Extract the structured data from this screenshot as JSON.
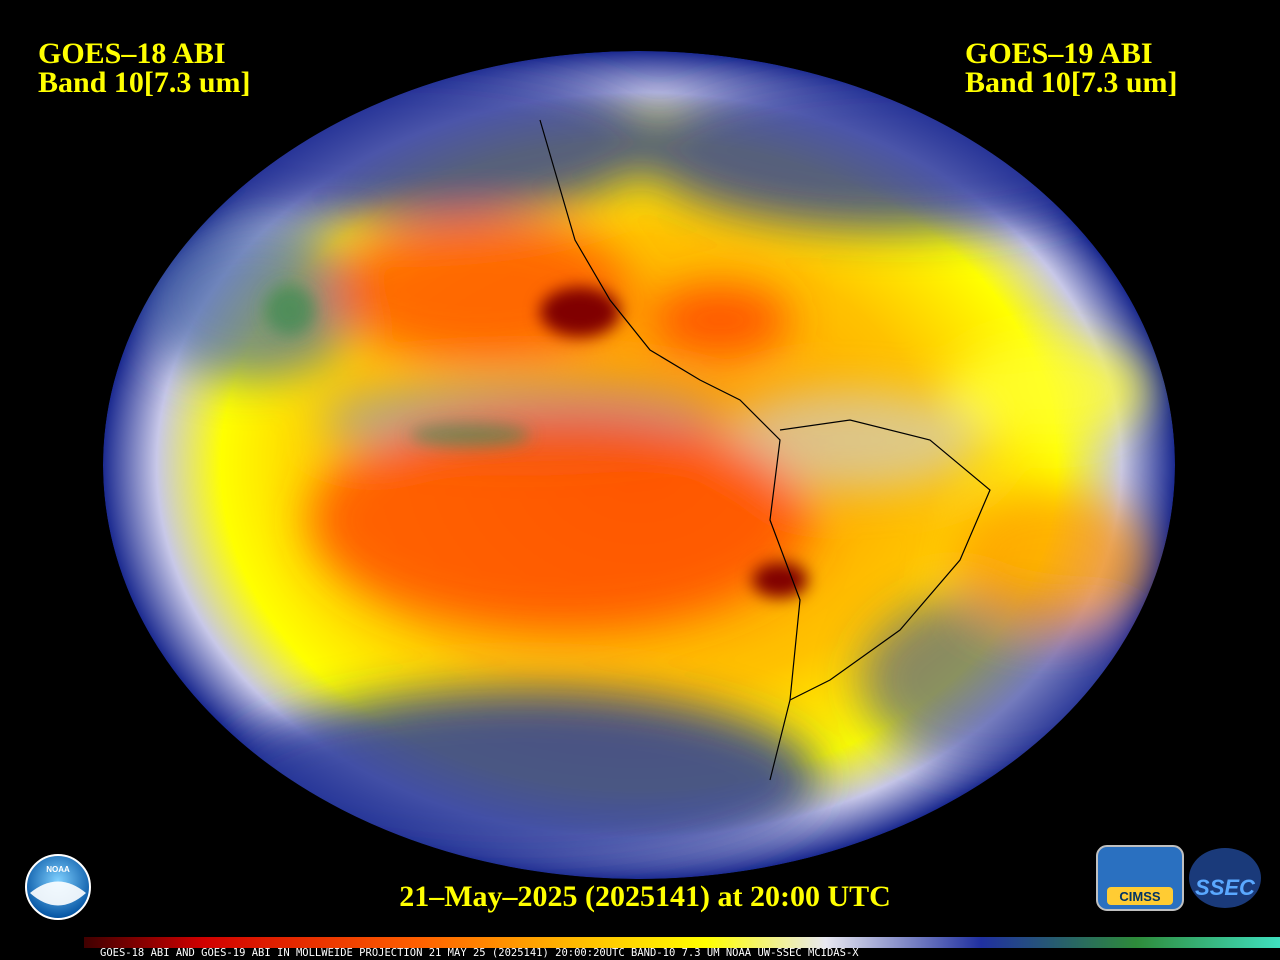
{
  "left_label": {
    "satellite": "GOES–18 ABI",
    "band": "Band 10[7.3 um]"
  },
  "right_label": {
    "satellite": "GOES–19 ABI",
    "band": "Band 10[7.3 um]"
  },
  "timestamp": "21–May–2025 (2025141) at 20:00 UTC",
  "footer": "GOES-18 ABI AND GOES-19 ABI IN MOLLWEIDE PROJECTION 21 MAY 25 (2025141) 20:00:20UTC BAND-10 7.3 UM NOAA UW-SSEC MCIDAS-X",
  "logos": {
    "noaa": "NOAA",
    "cimss": "CIMSS",
    "ssec": "SSEC"
  }
}
